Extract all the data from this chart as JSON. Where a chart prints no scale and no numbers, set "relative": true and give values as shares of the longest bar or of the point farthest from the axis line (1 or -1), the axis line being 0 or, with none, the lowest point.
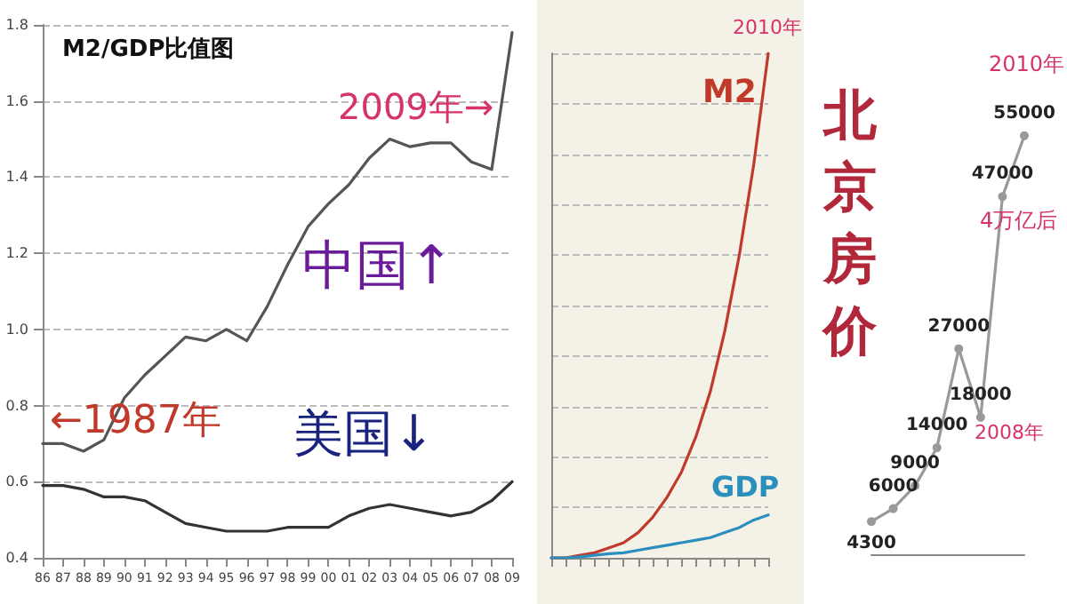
{
  "chart_data": [
    {
      "type": "line",
      "title": "M2/GDP比值图",
      "categories": [
        "86",
        "87",
        "88",
        "89",
        "90",
        "91",
        "92",
        "93",
        "94",
        "95",
        "96",
        "97",
        "98",
        "99",
        "00",
        "01",
        "02",
        "03",
        "04",
        "05",
        "06",
        "07",
        "08",
        "09"
      ],
      "series": [
        {
          "color": "#555555",
          "values": [
            0.7,
            0.7,
            0.68,
            0.71,
            0.82,
            0.88,
            0.93,
            0.98,
            0.97,
            1.0,
            0.97,
            1.06,
            1.17,
            1.27,
            1.33,
            1.38,
            1.45,
            1.5,
            1.48,
            1.49,
            1.49,
            1.44,
            1.42,
            1.78
          ]
        },
        {
          "color": "#333333",
          "values": [
            0.59,
            0.59,
            0.58,
            0.56,
            0.56,
            0.55,
            0.52,
            0.49,
            0.48,
            0.47,
            0.47,
            0.47,
            0.48,
            0.48,
            0.48,
            0.51,
            0.53,
            0.54,
            0.53,
            0.52,
            0.51,
            0.52,
            0.55,
            0.6
          ]
        }
      ],
      "ylim": [
        0.4,
        1.8
      ],
      "yticks": [
        0.4,
        0.6,
        0.8,
        {
          "value": 1,
          "label": "1.0"
        },
        1.2,
        1.4,
        1.6,
        1.8
      ],
      "grid": "y",
      "legend": false,
      "marker": "none",
      "annotations": [
        "2009年→",
        "中国↑",
        "←1987年",
        "美国↓"
      ]
    },
    {
      "type": "line",
      "relative": true,
      "categories": [
        null,
        null,
        null,
        null,
        null,
        null,
        null,
        null,
        null,
        null,
        null,
        null,
        null,
        null,
        null,
        null
      ],
      "series": [
        {
          "name": "M2",
          "color": "#c0392b",
          "values": [
            0,
            0,
            0.005,
            0.01,
            0.02,
            0.03,
            0.05,
            0.08,
            0.12,
            0.17,
            0.24,
            0.33,
            0.45,
            0.6,
            0.78,
            1
          ]
        },
        {
          "name": "GDP",
          "color": "#2a8fbd",
          "values": [
            0,
            0,
            0.002,
            0.005,
            0.008,
            0.01,
            0.015,
            0.02,
            0.025,
            0.03,
            0.035,
            0.04,
            0.05,
            0.06,
            0.075,
            0.085
          ]
        }
      ],
      "grid": "y",
      "legend": false,
      "marker": "none",
      "annotations": [
        "2010年"
      ]
    },
    {
      "type": "line",
      "title": "北京房价",
      "categories": [
        null,
        null,
        null,
        null,
        null,
        null,
        null,
        null
      ],
      "values": [
        4300,
        6000,
        9000,
        14000,
        27000,
        18000,
        47000,
        55000
      ],
      "color": "#999999",
      "data_labels": true,
      "marker": "circle",
      "legend": false,
      "tick_labels": false,
      "annotations": [
        "2010年",
        "4万亿后",
        "2008年"
      ]
    }
  ]
}
